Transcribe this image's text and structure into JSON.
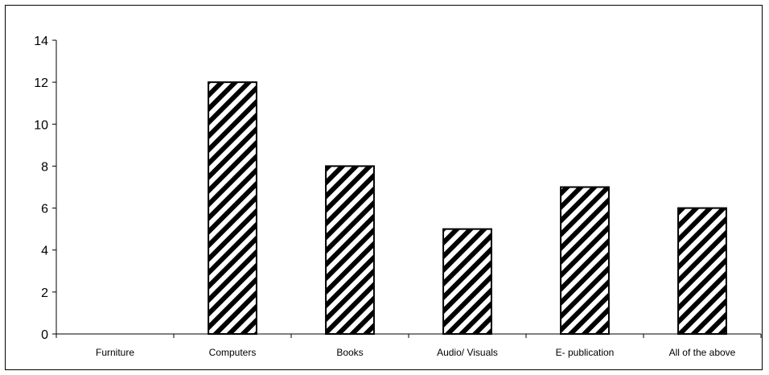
{
  "chart_data": {
    "type": "bar",
    "categories": [
      "Furniture",
      "Computers",
      "Books",
      "Audio/ Visuals",
      "E- publication",
      "All of the above"
    ],
    "values": [
      0,
      12,
      8,
      5,
      7,
      6
    ],
    "ylim": [
      0,
      14
    ],
    "yticks": [
      "0",
      "2",
      "4",
      "6",
      "8",
      "10",
      "12",
      "14"
    ],
    "title": "",
    "xlabel": "",
    "ylabel": "",
    "grid": false,
    "legend": "none",
    "bar_fill": "diagonal-hatch",
    "colors": {
      "bar_stroke": "#000000",
      "hatch": "#000000",
      "background": "#ffffff"
    }
  }
}
